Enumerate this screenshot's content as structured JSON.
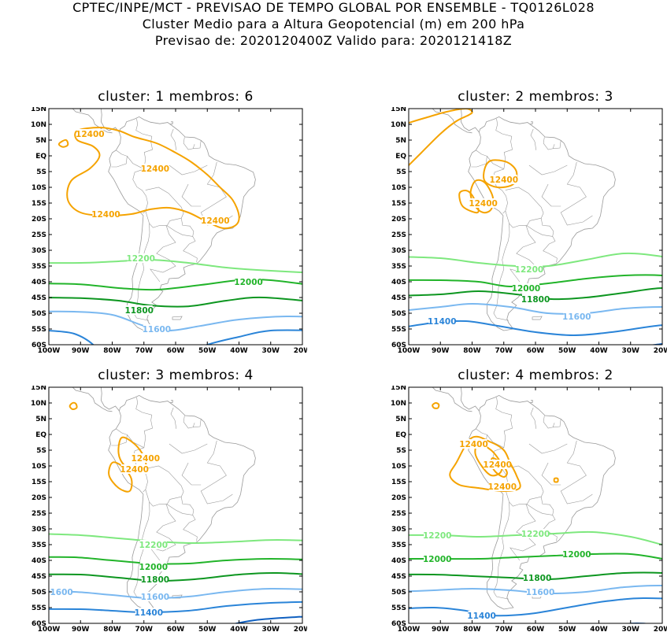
{
  "header": {
    "line1": "CPTEC/INPE/MCT - PREVISAO DE TEMPO GLOBAL POR ENSEMBLE - TQ0126L028",
    "line2": "Cluster Medio para a Altura Geopotencial (m) em 200 hPa",
    "line3": "Previsao de: 2020120400Z    Valido para: 2020121418Z"
  },
  "axes": {
    "lat_labels": [
      "15N",
      "10N",
      "5N",
      "EQ",
      "5S",
      "10S",
      "15S",
      "20S",
      "25S",
      "30S",
      "35S",
      "40S",
      "45S",
      "50S",
      "55S",
      "60S"
    ],
    "lon_labels": [
      "100W",
      "90W",
      "80W",
      "70W",
      "60W",
      "50W",
      "40W",
      "30W",
      "20W"
    ]
  },
  "colors": {
    "c12400": "#f5a300",
    "c12200": "#7ee87e",
    "c12000": "#22b42a",
    "c11800": "#0d9620",
    "c11600": "#7ab8f0",
    "c11400": "#2a84d8",
    "c11200": "#1060c0",
    "coast": "#9a9a9a"
  },
  "panels": [
    {
      "title": "cluster: 1   membros: 6",
      "labels": [
        {
          "text": "12400",
          "color_key": "c12400"
        },
        {
          "text": "12400",
          "color_key": "c12400"
        },
        {
          "text": "12400",
          "color_key": "c12400"
        },
        {
          "text": "12400",
          "color_key": "c12400"
        },
        {
          "text": "12200",
          "color_key": "c12200"
        },
        {
          "text": "12000",
          "color_key": "c12000"
        },
        {
          "text": "11800",
          "color_key": "c11800"
        },
        {
          "text": "11600",
          "color_key": "c11600"
        }
      ]
    },
    {
      "title": "cluster: 2   membros: 3",
      "labels": [
        {
          "text": "12400",
          "color_key": "c12400"
        },
        {
          "text": "12400",
          "color_key": "c12400"
        },
        {
          "text": "12200",
          "color_key": "c12200"
        },
        {
          "text": "12000",
          "color_key": "c12000"
        },
        {
          "text": "11800",
          "color_key": "c11800"
        },
        {
          "text": "11600",
          "color_key": "c11600"
        },
        {
          "text": "11400",
          "color_key": "c11400"
        }
      ]
    },
    {
      "title": "cluster: 3   membros: 4",
      "labels": [
        {
          "text": "12400",
          "color_key": "c12400"
        },
        {
          "text": "12400",
          "color_key": "c12400"
        },
        {
          "text": "12200",
          "color_key": "c12200"
        },
        {
          "text": "12000",
          "color_key": "c12000"
        },
        {
          "text": "11800",
          "color_key": "c11800"
        },
        {
          "text": "11600",
          "color_key": "c11600"
        },
        {
          "text": "1600",
          "color_key": "c11600"
        },
        {
          "text": "11400",
          "color_key": "c11400"
        }
      ]
    },
    {
      "title": "cluster: 4   membros: 2",
      "labels": [
        {
          "text": "12400",
          "color_key": "c12400"
        },
        {
          "text": "12400",
          "color_key": "c12400"
        },
        {
          "text": "12400",
          "color_key": "c12400"
        },
        {
          "text": "12200",
          "color_key": "c12200"
        },
        {
          "text": "12200",
          "color_key": "c12200"
        },
        {
          "text": "12000",
          "color_key": "c12000"
        },
        {
          "text": "12000",
          "color_key": "c12000"
        },
        {
          "text": "11800",
          "color_key": "c11800"
        },
        {
          "text": "11600",
          "color_key": "c11600"
        },
        {
          "text": "11400",
          "color_key": "c11400"
        }
      ]
    }
  ]
}
